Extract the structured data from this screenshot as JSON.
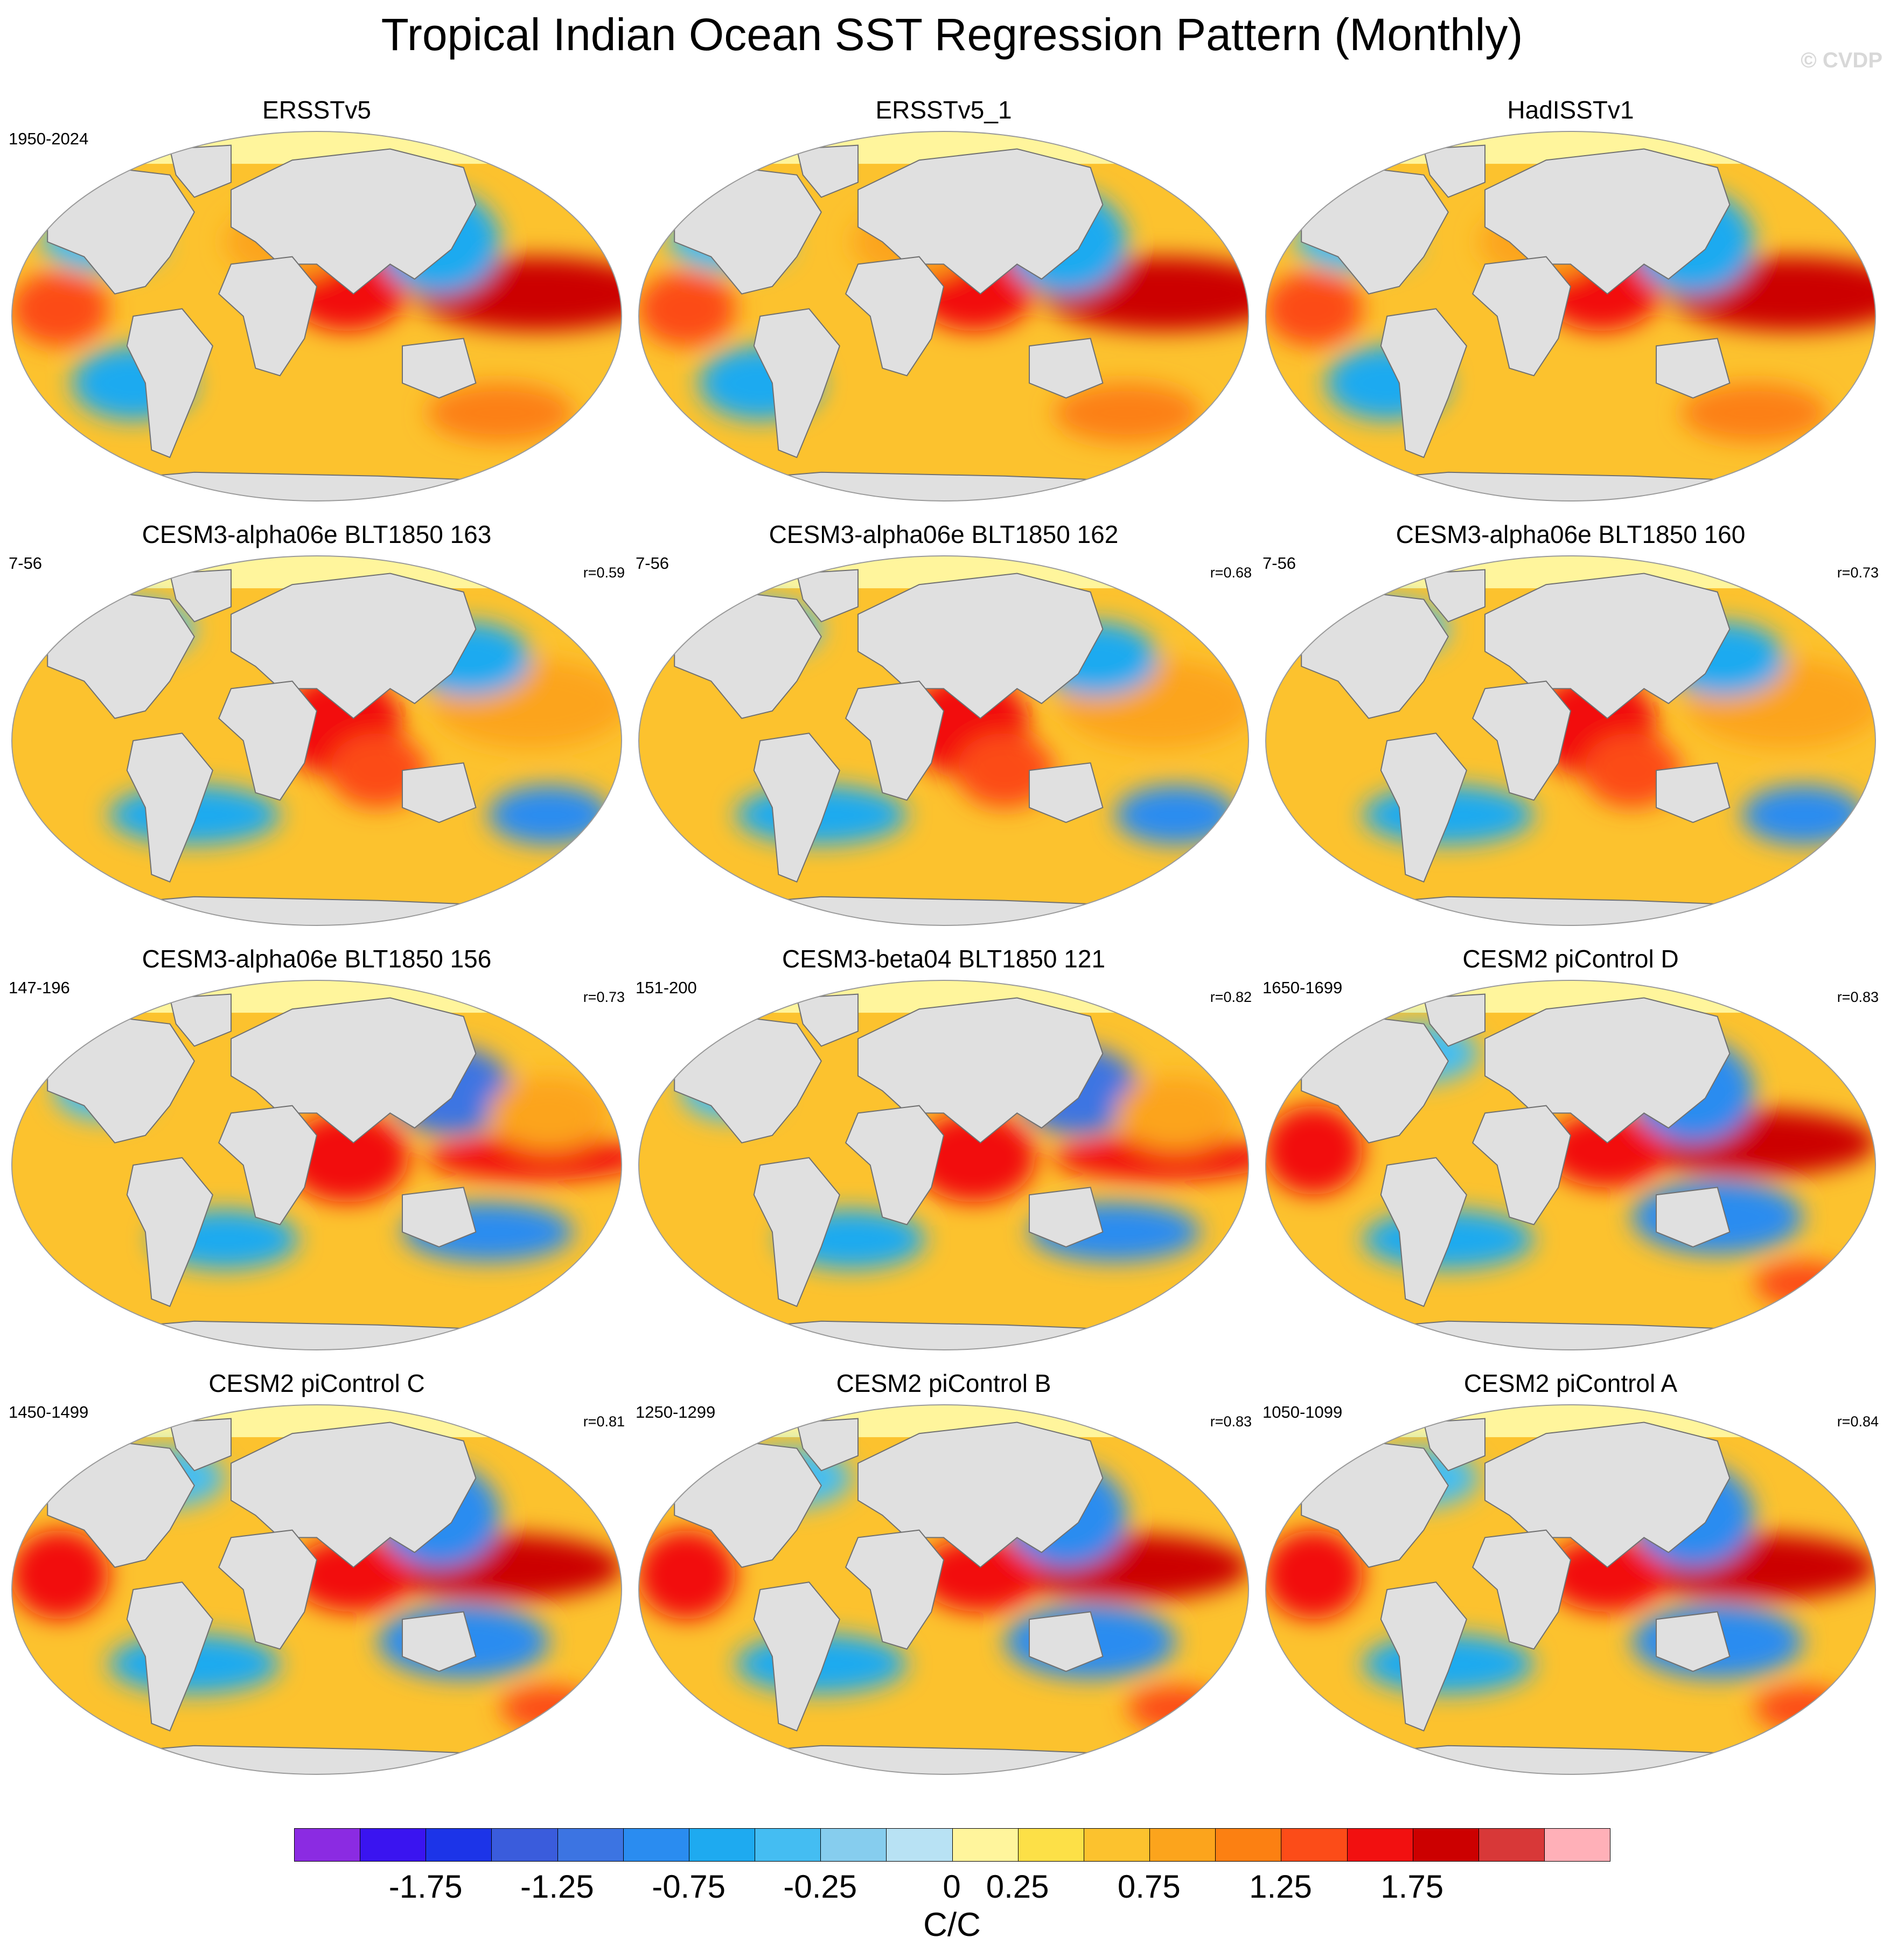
{
  "title": "Tropical Indian Ocean SST Regression Pattern (Monthly)",
  "credit": "© CVDP",
  "panels": [
    {
      "title": "ERSSTv5",
      "period": "1950-2024",
      "corr": "",
      "variant": 0
    },
    {
      "title": "ERSSTv5_1",
      "period": "",
      "corr": "",
      "variant": 0
    },
    {
      "title": "HadISSTv1",
      "period": "",
      "corr": "",
      "variant": 0
    },
    {
      "title": "CESM3-alpha06e BLT1850 163",
      "period": "7-56",
      "corr": "r=0.59",
      "variant": 1
    },
    {
      "title": "CESM3-alpha06e BLT1850 162",
      "period": "7-56",
      "corr": "r=0.68",
      "variant": 1
    },
    {
      "title": "CESM3-alpha06e BLT1850 160",
      "period": "7-56",
      "corr": "r=0.73",
      "variant": 1
    },
    {
      "title": "CESM3-alpha06e BLT1850 156",
      "period": "147-196",
      "corr": "r=0.73",
      "variant": 2
    },
    {
      "title": "CESM3-beta04 BLT1850 121",
      "period": "151-200",
      "corr": "r=0.82",
      "variant": 2
    },
    {
      "title": "CESM2 piControl D",
      "period": "1650-1699",
      "corr": "r=0.83",
      "variant": 3
    },
    {
      "title": "CESM2 piControl C",
      "period": "1450-1499",
      "corr": "r=0.81",
      "variant": 3
    },
    {
      "title": "CESM2 piControl B",
      "period": "1250-1299",
      "corr": "r=0.83",
      "variant": 3
    },
    {
      "title": "CESM2 piControl A",
      "period": "1050-1099",
      "corr": "r=0.84",
      "variant": 3
    }
  ],
  "colorbar": {
    "colors": [
      "#8b2be2",
      "#3a14f0",
      "#1c34e8",
      "#3a5cdc",
      "#3c74e2",
      "#2a8cf0",
      "#1eaaf0",
      "#44bdf2",
      "#86cdee",
      "#b8e2f4",
      "#fff59c",
      "#fde047",
      "#fcc22e",
      "#fca41c",
      "#fc8012",
      "#fc4c18",
      "#f21010",
      "#cc0000",
      "#d83838",
      "#ffb0b8"
    ],
    "labels": [
      "-1.75",
      "-1.25",
      "-0.75",
      "-0.25",
      "0",
      "0.25",
      "0.75",
      "1.25",
      "1.75"
    ],
    "label_slots": [
      2,
      4,
      6,
      8,
      10,
      11,
      13,
      15,
      17
    ],
    "units": "C/C"
  }
}
